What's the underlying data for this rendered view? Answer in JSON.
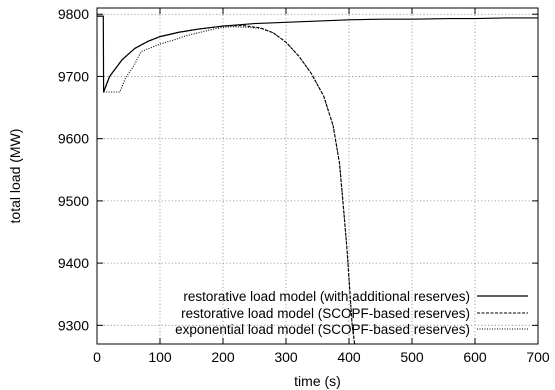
{
  "chart_data": {
    "type": "line",
    "title": "",
    "xlabel": "time (s)",
    "ylabel": "total load (MW)",
    "xlim": [
      0,
      700
    ],
    "ylim": [
      9270,
      9810
    ],
    "x_ticks": [
      0,
      100,
      200,
      300,
      400,
      500,
      600,
      700
    ],
    "y_ticks": [
      9300,
      9400,
      9500,
      9600,
      9700,
      9800
    ],
    "grid": true,
    "legend_position": "bottom-right",
    "series": [
      {
        "name": "restorative load model (with additional reserves)",
        "style": "solid",
        "color": "#000000",
        "x": [
          0,
          10,
          10.5,
          20,
          40,
          60,
          80,
          100,
          130,
          160,
          200,
          250,
          300,
          350,
          400,
          450,
          500,
          560,
          600,
          650,
          700
        ],
        "y": [
          9797,
          9797,
          9675,
          9700,
          9727,
          9745,
          9756,
          9764,
          9771,
          9776,
          9781,
          9785,
          9787,
          9789,
          9791,
          9792,
          9792,
          9793,
          9793,
          9794,
          9794
        ]
      },
      {
        "name": "restorative load model (SCOPF-based reserves)",
        "style": "dashed",
        "color": "#000000",
        "x": [
          10.5,
          20,
          40,
          60,
          80,
          100,
          130,
          160,
          200,
          230,
          260,
          280,
          300,
          320,
          340,
          360,
          375,
          385,
          392,
          397,
          401,
          405,
          409
        ],
        "y": [
          9675,
          9700,
          9727,
          9745,
          9756,
          9764,
          9771,
          9776,
          9781,
          9782,
          9778,
          9770,
          9755,
          9733,
          9705,
          9668,
          9620,
          9560,
          9480,
          9420,
          9360,
          9300,
          9270
        ]
      },
      {
        "name": "exponential load model (SCOPF-based reserves)",
        "style": "dotted",
        "color": "#000000",
        "x": [
          10.5,
          18,
          28,
          36,
          40,
          44,
          50,
          55,
          60,
          65,
          70,
          80,
          90,
          100,
          120,
          140,
          160,
          180,
          200,
          215,
          240,
          260,
          280,
          300,
          320,
          340,
          360,
          375,
          385,
          392,
          397,
          401,
          405,
          409
        ],
        "y": [
          9675,
          9675,
          9675,
          9675,
          9684,
          9695,
          9705,
          9712,
          9720,
          9730,
          9740,
          9744,
          9748,
          9752,
          9758,
          9765,
          9770,
          9775,
          9779,
          9780,
          9779,
          9777,
          9770,
          9755,
          9733,
          9705,
          9668,
          9620,
          9560,
          9480,
          9420,
          9360,
          9300,
          9270
        ]
      }
    ]
  }
}
